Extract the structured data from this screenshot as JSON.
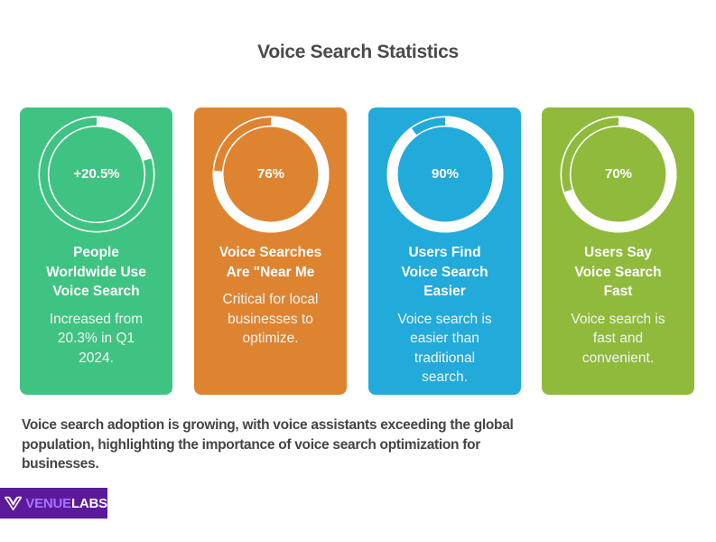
{
  "title": "Voice Search Statistics",
  "cards": [
    {
      "value": "+20.5%",
      "percent": 20.5,
      "heading_lines": [
        "People",
        "Worldwide Use",
        "Voice Search"
      ],
      "description_lines": [
        "Increased from",
        "20.3% in Q1",
        "2024."
      ],
      "color": "#3fc382"
    },
    {
      "value": "76%",
      "percent": 76,
      "heading_lines": [
        "Voice Searches",
        "Are \"Near Me"
      ],
      "description_lines": [
        "Critical for local",
        "businesses to",
        "optimize."
      ],
      "color": "#de8431"
    },
    {
      "value": "90%",
      "percent": 90,
      "heading_lines": [
        "Users Find",
        "Voice Search",
        "Easier"
      ],
      "description_lines": [
        "Voice search is",
        "easier than",
        "traditional",
        "search."
      ],
      "color": "#22aadb"
    },
    {
      "value": "70%",
      "percent": 70,
      "heading_lines": [
        "Users Say",
        "Voice Search",
        "Fast"
      ],
      "description_lines": [
        "Voice search is",
        "fast and",
        "convenient."
      ],
      "color": "#8fba3c"
    }
  ],
  "summary_lines": [
    "Voice search adoption is growing, with voice assistants exceeding the global",
    "population, highlighting the importance of voice search optimization for",
    "businesses."
  ],
  "logo": {
    "icon": "venuelabs-v-logo-icon",
    "text_part1": "VENUE",
    "text_part2": "LABS",
    "background": "#5b1a9c"
  },
  "chart_data": {
    "type": "pie",
    "title": "Voice Search Statistics",
    "categories": [
      "People Worldwide Use Voice Search",
      "Voice Searches Are \"Near Me",
      "Users Find Voice Search Easier",
      "Users Say Voice Search Fast"
    ],
    "values": [
      20.5,
      76,
      90,
      70
    ],
    "labels": [
      "+20.5%",
      "76%",
      "90%",
      "70%"
    ],
    "colors": [
      "#3fc382",
      "#de8431",
      "#22aadb",
      "#8fba3c"
    ]
  }
}
